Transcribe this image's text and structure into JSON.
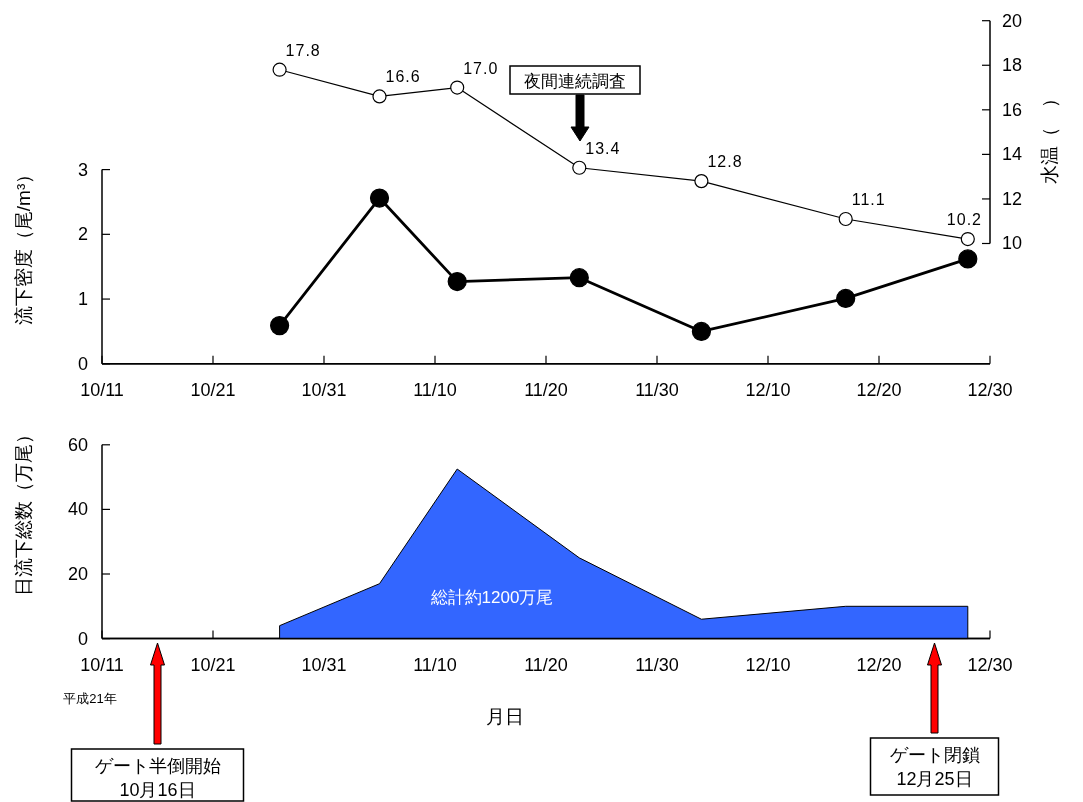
{
  "chart_data": [
    {
      "type": "line",
      "ylabel": "流下密度（尾/m³）",
      "y2label": "水温（　）",
      "x": [
        "--10-27",
        "--11-05",
        "--11-12",
        "--11-23",
        "--12-04",
        "--12-17",
        "--12-28"
      ],
      "xlim": [
        "--10-11",
        "--12-30"
      ],
      "xticks": [
        {
          "value": "--10-11",
          "label": "10/11"
        },
        {
          "value": "--10-21",
          "label": "10/21"
        },
        {
          "value": "--10-31",
          "label": "10/31"
        },
        {
          "value": "--11-10",
          "label": "11/10"
        },
        {
          "value": "--11-20",
          "label": "11/20"
        },
        {
          "value": "--11-30",
          "label": "11/30"
        },
        {
          "value": "--12-10",
          "label": "12/10"
        },
        {
          "value": "--12-20",
          "label": "12/20"
        },
        {
          "value": "--12-30",
          "label": "12/30"
        }
      ],
      "ylim": [
        0,
        5.3
      ],
      "yticks": [
        0,
        1,
        2,
        3
      ],
      "y2lim": [
        4.6,
        20
      ],
      "y2ticks": [
        10,
        12,
        14,
        16,
        18,
        20
      ],
      "marker": "circle",
      "grid": false,
      "series": [
        {
          "color": "#000000",
          "values": [
            0.59,
            2.56,
            1.27,
            1.33,
            0.5,
            1.01,
            1.62
          ]
        },
        {
          "color": "#ffffff",
          "axis": "y2",
          "values": [
            17.8,
            16.6,
            17.0,
            13.4,
            12.8,
            11.1,
            10.2
          ],
          "value_labels": [
            "17.8",
            "16.6",
            "17.0",
            "13.4",
            "12.8",
            "11.1",
            "10.2"
          ]
        }
      ],
      "annotations": [
        "夜間連続調査"
      ]
    },
    {
      "type": "area",
      "xlabel": "月日",
      "ylabel": "日流下総数（万尾）",
      "x": [
        "--10-27",
        "--11-05",
        "--11-12",
        "--11-23",
        "--12-04",
        "--12-17",
        "--12-28"
      ],
      "xlim": [
        "--10-11",
        "--12-30"
      ],
      "xticks": [
        {
          "value": "--10-11",
          "label": "10/11"
        },
        {
          "value": "--10-21",
          "label": "10/21"
        },
        {
          "value": "--10-31",
          "label": "10/31"
        },
        {
          "value": "--11-10",
          "label": "11/10"
        },
        {
          "value": "--11-20",
          "label": "11/20"
        },
        {
          "value": "--11-30",
          "label": "11/30"
        },
        {
          "value": "--12-10",
          "label": "12/10"
        },
        {
          "value": "--12-20",
          "label": "12/20"
        },
        {
          "value": "--12-30",
          "label": "12/30"
        }
      ],
      "ylim": [
        0,
        60
      ],
      "yticks": [
        0,
        20,
        40,
        60
      ],
      "grid": false,
      "series": [
        {
          "color": "#3366ff",
          "values": [
            4,
            17,
            52.5,
            25,
            6,
            10,
            10
          ]
        }
      ],
      "annotations": [
        "総計約1200万尾",
        "平成21年"
      ],
      "ref_lines": [
        {
          "axis": "x",
          "value": "--10-16",
          "label": "ゲート半倒開始\n10月16日",
          "color": "#ff0000"
        },
        {
          "axis": "x",
          "value": "--12-25",
          "label": "ゲート閉鎖\n12月25日",
          "color": "#ff0000"
        }
      ]
    }
  ]
}
